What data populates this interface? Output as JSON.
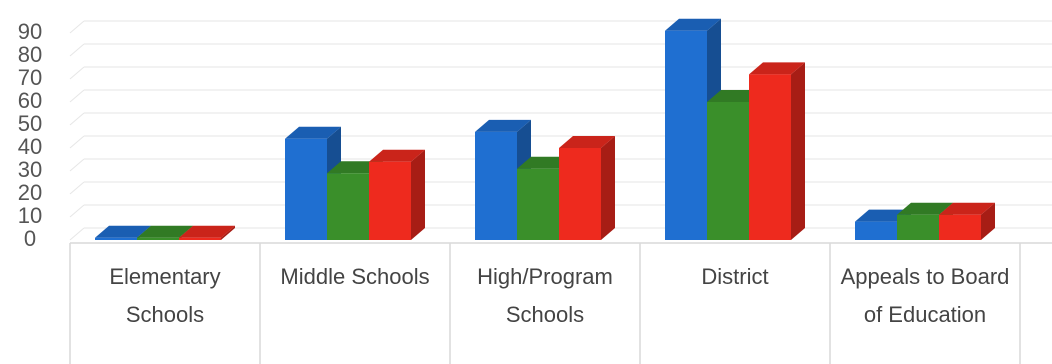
{
  "chart_data": {
    "type": "bar3d",
    "categories": [
      "Elementary Schools",
      "Middle Schools",
      "High/Program Schools",
      "District",
      "Appeals to Board of Education"
    ],
    "series": [
      {
        "color": "#1f6fd1",
        "values": [
          1,
          44,
          47,
          91,
          8
        ]
      },
      {
        "color": "#3a8f2a",
        "values": [
          1,
          29,
          31,
          60,
          11
        ]
      },
      {
        "color": "#ee2a1e",
        "values": [
          1,
          34,
          40,
          72,
          11
        ]
      }
    ],
    "ylim": [
      0,
      100
    ],
    "yticks": [
      0,
      10,
      20,
      30,
      40,
      50,
      60,
      70,
      80,
      90
    ],
    "grid": true
  }
}
